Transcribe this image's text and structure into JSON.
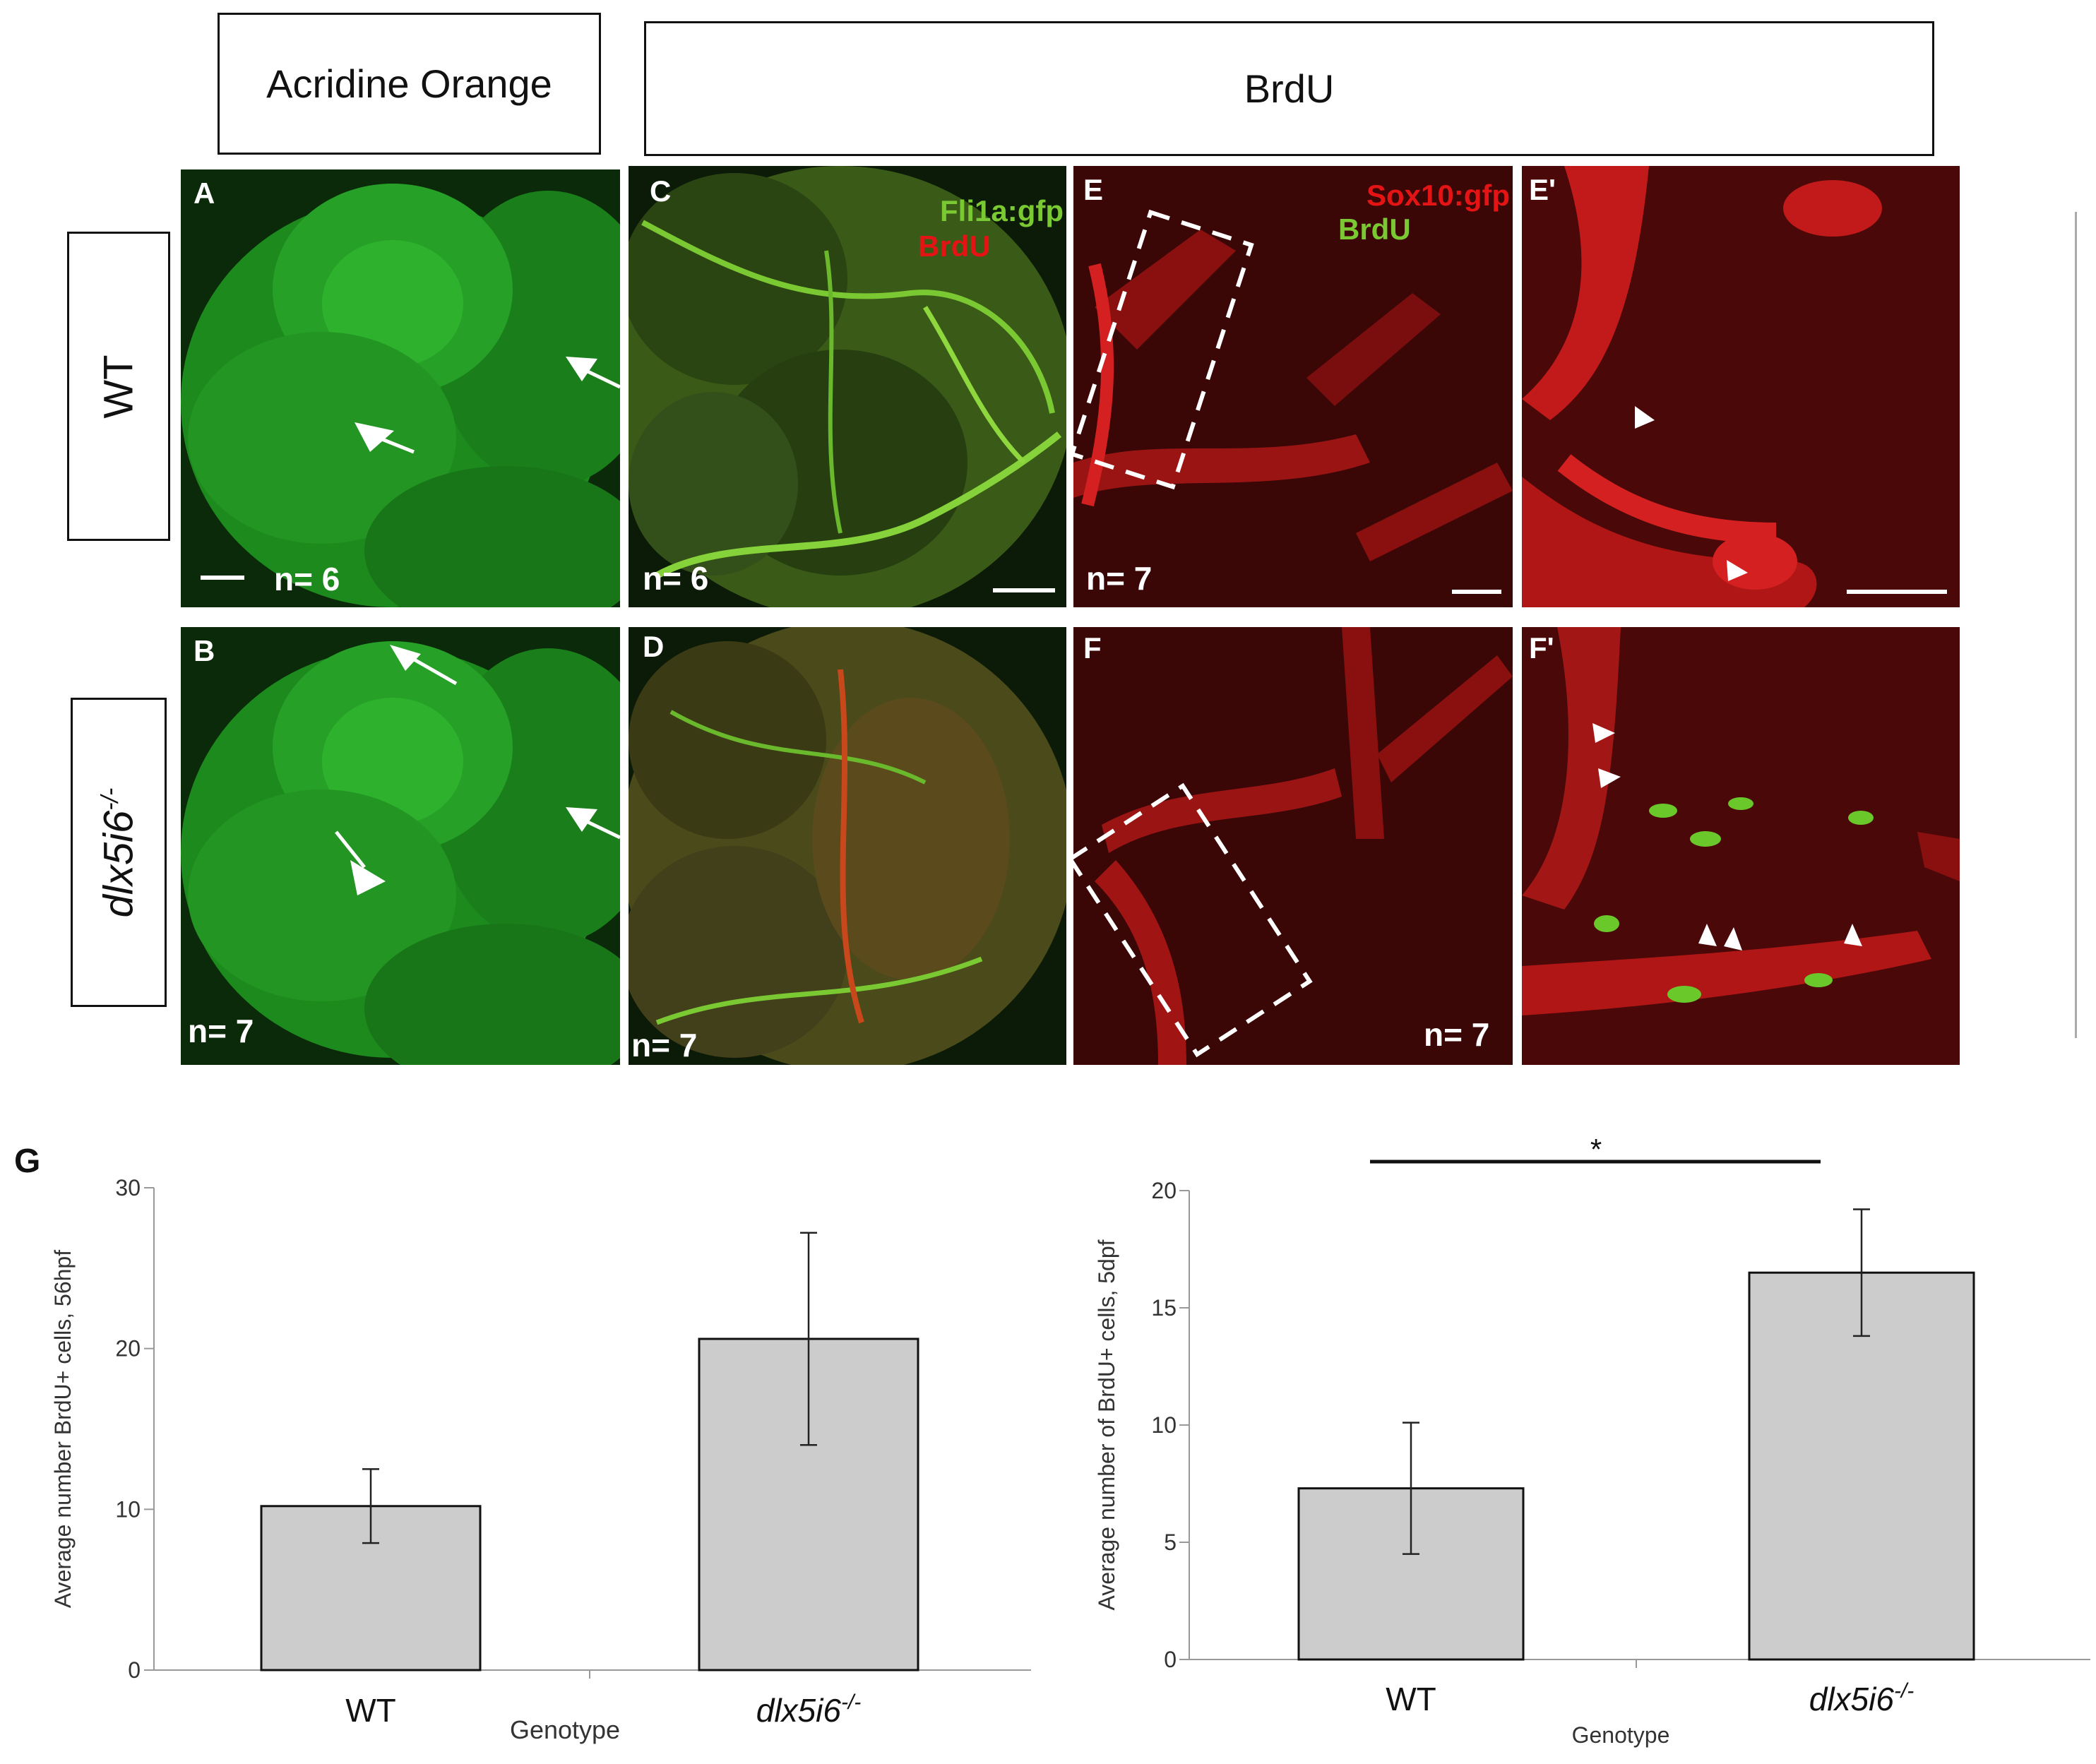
{
  "figure": {
    "headers": {
      "left": "Acridine Orange",
      "right": "BrdU"
    },
    "row_labels": {
      "top": "WT",
      "bottom_main": "dlx5i6",
      "bottom_sup": "-/-"
    },
    "panels": {
      "A": {
        "letter": "A",
        "n": "n= 6"
      },
      "B": {
        "letter": "B",
        "n": "n= 7"
      },
      "C": {
        "letter": "C",
        "n": "n= 6",
        "markers": [
          "Fli1a:gfp",
          "BrdU"
        ]
      },
      "D": {
        "letter": "D",
        "n": "n= 7"
      },
      "E": {
        "letter": "E",
        "n": "n= 7",
        "markers": [
          "Sox10:gfp",
          "BrdU"
        ]
      },
      "E2": {
        "letter": "E'"
      },
      "F": {
        "letter": "F",
        "n": "n= 7"
      },
      "F2": {
        "letter": "F'"
      }
    },
    "colors": {
      "gfp_green": "#7ac832",
      "brdu_red": "#e41414",
      "bar_fill": "#cccccc"
    }
  },
  "chart_data": [
    {
      "type": "bar",
      "panel_label": "G",
      "categories": [
        "WT",
        "dlx5i6-/-"
      ],
      "values": [
        10.2,
        20.6
      ],
      "errors": [
        2.3,
        6.6
      ],
      "xlabel": "Genotype",
      "ylabel": "Average number BrdU+ cells, 56hpf",
      "ylim": [
        0,
        30
      ],
      "yticks": [
        0,
        10,
        20,
        30
      ],
      "grid": false
    },
    {
      "type": "bar",
      "categories": [
        "WT",
        "dlx5i6-/-"
      ],
      "values": [
        7.3,
        16.5
      ],
      "errors": [
        2.8,
        2.7
      ],
      "xlabel": "Genotype",
      "ylabel": "Average number of BrdU+ cells, 5dpf",
      "ylim": [
        0,
        20
      ],
      "yticks": [
        0,
        5,
        10,
        15,
        20
      ],
      "significance": "*",
      "grid": false
    }
  ]
}
